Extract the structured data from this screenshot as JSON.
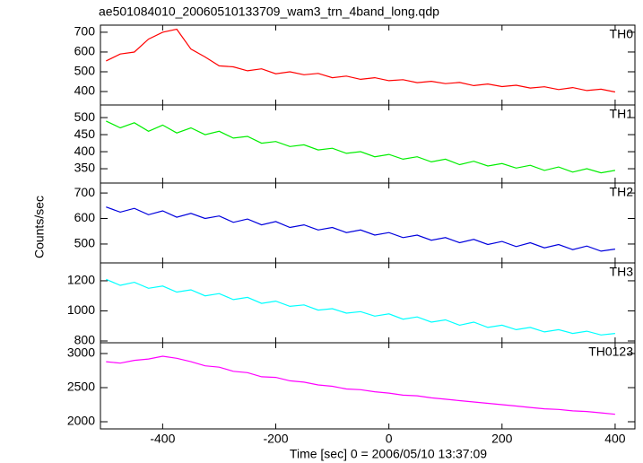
{
  "chart_data": {
    "type": "line",
    "title": "ae501084010_20060510133709_wam3_trn_4band_long.qdp",
    "xlabel": "Time [sec] 0 = 2006/05/10 13:37:09",
    "ylabel": "Counts/sec",
    "xlim": [
      -510,
      435
    ],
    "xticks": [
      -400,
      -200,
      0,
      200,
      400
    ],
    "x": [
      -500,
      -475,
      -450,
      -425,
      -400,
      -375,
      -350,
      -325,
      -300,
      -275,
      -250,
      -225,
      -200,
      -175,
      -150,
      -125,
      -100,
      -75,
      -50,
      -25,
      0,
      25,
      50,
      75,
      100,
      125,
      150,
      175,
      200,
      225,
      250,
      275,
      300,
      325,
      350,
      375,
      400
    ],
    "panels": [
      {
        "name": "TH0",
        "color": "#ff0000",
        "ylim": [
          332,
          736
        ],
        "yticks": [
          400,
          500,
          600,
          700
        ],
        "values": [
          555,
          590,
          600,
          665,
          700,
          715,
          615,
          575,
          530,
          525,
          505,
          515,
          490,
          500,
          485,
          492,
          470,
          478,
          462,
          470,
          455,
          460,
          445,
          452,
          440,
          446,
          430,
          438,
          425,
          432,
          418,
          424,
          410,
          420,
          405,
          412,
          398
        ]
      },
      {
        "name": "TH1",
        "color": "#00ee00",
        "ylim": [
          308,
          537
        ],
        "yticks": [
          350,
          400,
          450,
          500
        ],
        "values": [
          490,
          470,
          485,
          460,
          478,
          455,
          470,
          450,
          460,
          440,
          445,
          425,
          430,
          415,
          420,
          405,
          410,
          395,
          400,
          385,
          392,
          378,
          385,
          370,
          378,
          362,
          372,
          358,
          365,
          352,
          360,
          345,
          355,
          340,
          350,
          338,
          345
        ]
      },
      {
        "name": "TH2",
        "color": "#0000dd",
        "ylim": [
          426,
          739
        ],
        "yticks": [
          500,
          600,
          700
        ],
        "values": [
          645,
          625,
          640,
          615,
          630,
          605,
          620,
          600,
          610,
          585,
          598,
          575,
          588,
          565,
          575,
          555,
          565,
          545,
          555,
          535,
          545,
          525,
          535,
          515,
          525,
          505,
          518,
          498,
          510,
          490,
          505,
          485,
          498,
          478,
          492,
          472,
          480
        ]
      },
      {
        "name": "TH3",
        "color": "#00ffff",
        "ylim": [
          788,
          1319
        ],
        "yticks": [
          800,
          1000,
          1200
        ],
        "values": [
          1210,
          1170,
          1190,
          1150,
          1165,
          1125,
          1140,
          1100,
          1115,
          1075,
          1090,
          1050,
          1065,
          1030,
          1040,
          1005,
          1015,
          985,
          995,
          965,
          980,
          945,
          960,
          925,
          940,
          905,
          925,
          890,
          905,
          875,
          890,
          860,
          875,
          850,
          865,
          840,
          850
        ]
      },
      {
        "name": "TH0123",
        "color": "#ff00ff",
        "ylim": [
          1895,
          3158
        ],
        "yticks": [
          2000,
          2500,
          3000
        ],
        "values": [
          2880,
          2860,
          2900,
          2920,
          2960,
          2930,
          2880,
          2820,
          2800,
          2740,
          2720,
          2660,
          2650,
          2600,
          2580,
          2540,
          2520,
          2480,
          2470,
          2440,
          2420,
          2390,
          2380,
          2350,
          2330,
          2310,
          2290,
          2270,
          2250,
          2230,
          2210,
          2190,
          2180,
          2160,
          2150,
          2130,
          2110
        ]
      }
    ]
  }
}
